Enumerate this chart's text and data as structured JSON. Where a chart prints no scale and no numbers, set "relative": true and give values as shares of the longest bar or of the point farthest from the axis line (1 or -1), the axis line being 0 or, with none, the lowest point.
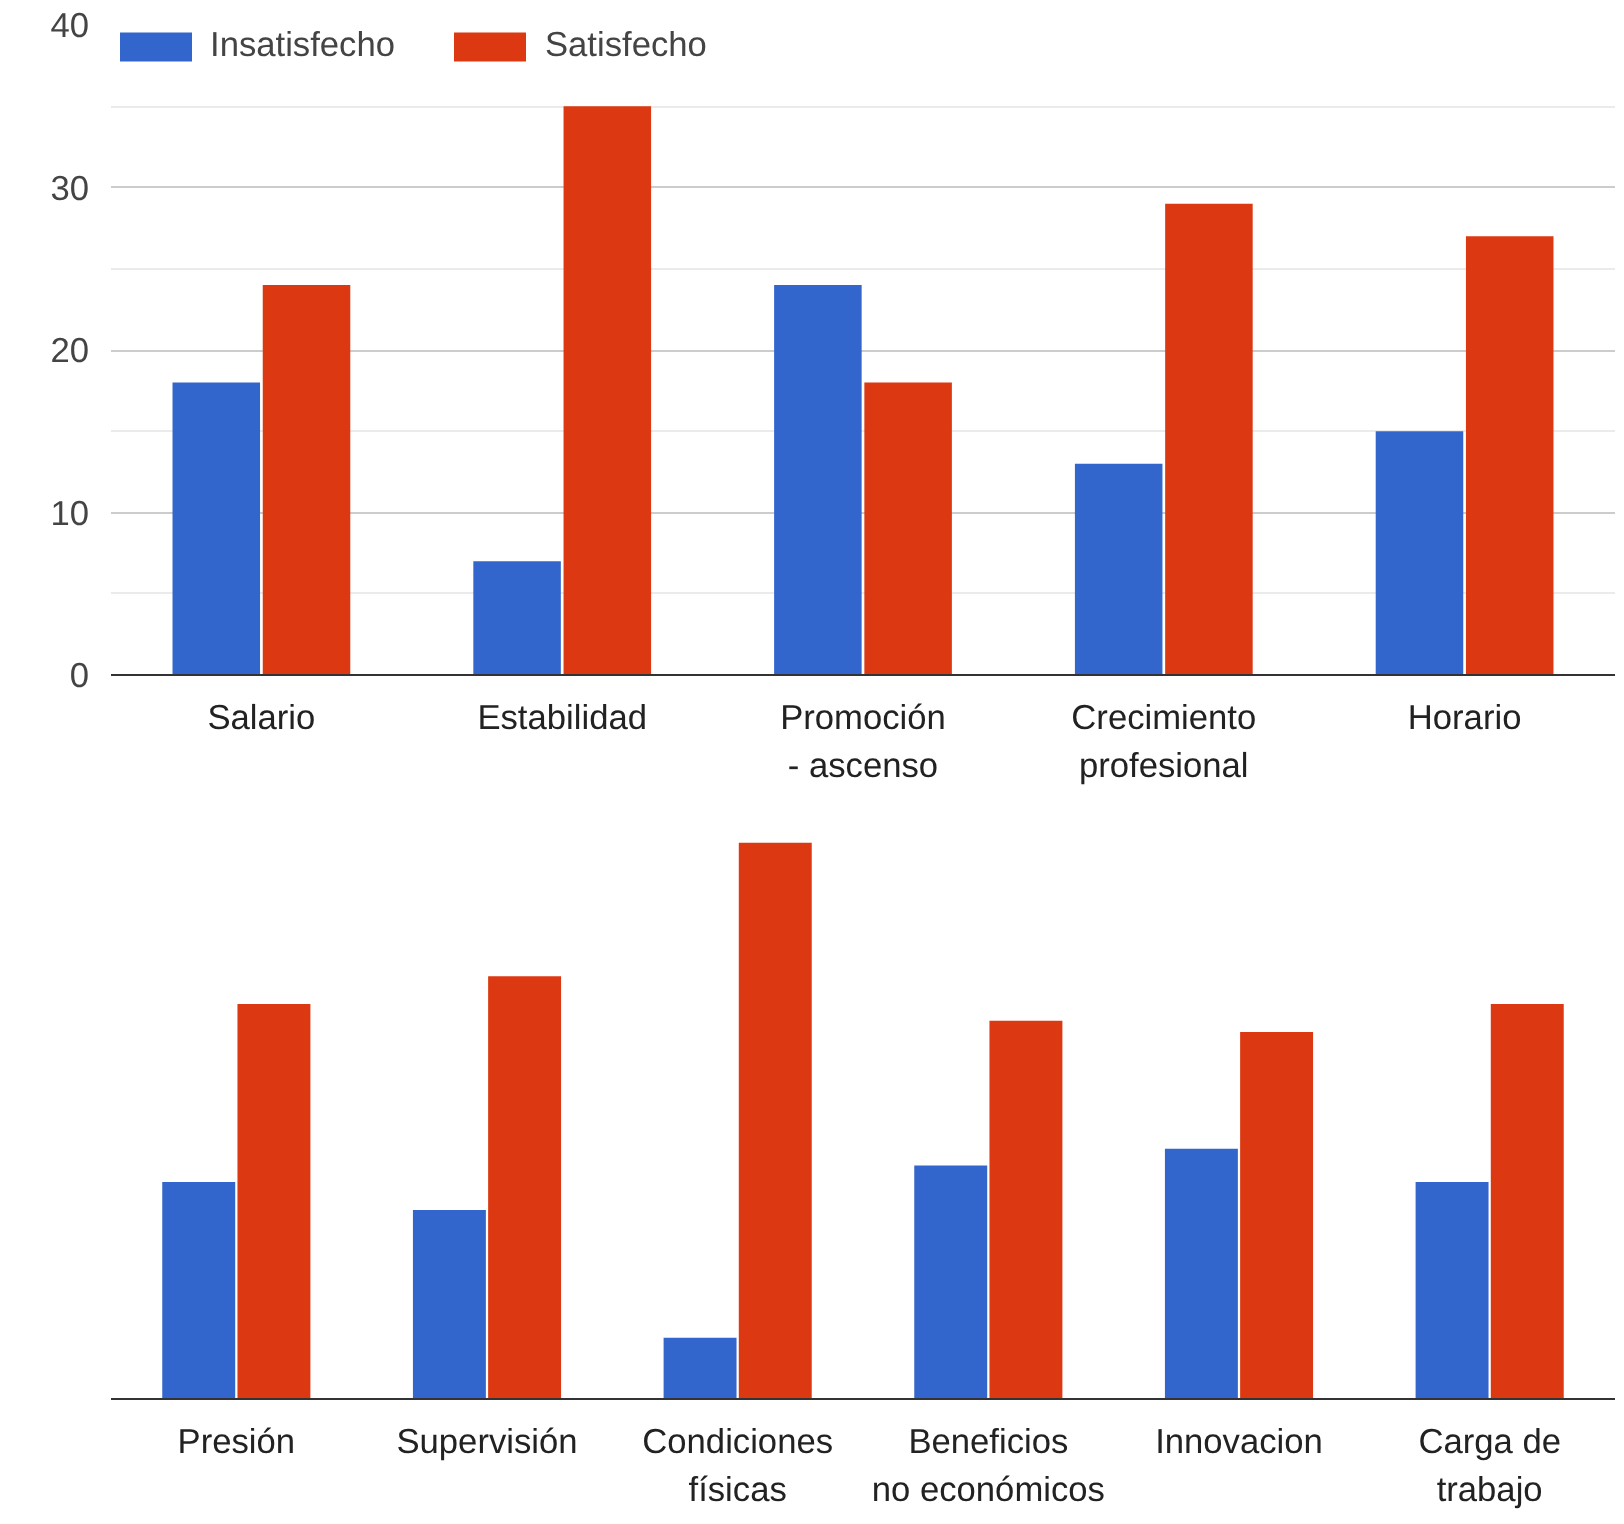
{
  "chart_data": [
    {
      "type": "bar",
      "categories": [
        "Salario",
        "Estabilidad",
        "Promoción - ascenso",
        "Crecimiento profesional",
        "Horario"
      ],
      "series": [
        {
          "name": "Insatisfecho",
          "color": "#3366cc",
          "values": [
            18,
            7,
            24,
            13,
            15
          ]
        },
        {
          "name": "Satisfecho",
          "color": "#dc3912",
          "values": [
            24,
            35,
            18,
            29,
            27
          ]
        }
      ],
      "ylim": [
        0,
        40
      ],
      "yticks": [
        0,
        10,
        20,
        30,
        40
      ],
      "grid": "y",
      "legend": "top left"
    },
    {
      "type": "bar",
      "categories": [
        "Presión",
        "Supervisión",
        "Condiciones físicas",
        "Beneficios no económicos",
        "Innovacion",
        "Carga de trabajo"
      ],
      "series": [
        {
          "color": "#3366cc",
          "values": [
            0.39,
            0.34,
            0.11,
            0.42,
            0.45,
            0.39
          ]
        },
        {
          "color": "#dc3912",
          "values": [
            0.71,
            0.76,
            1,
            0.68,
            0.66,
            0.71
          ]
        }
      ],
      "relative": true
    }
  ]
}
